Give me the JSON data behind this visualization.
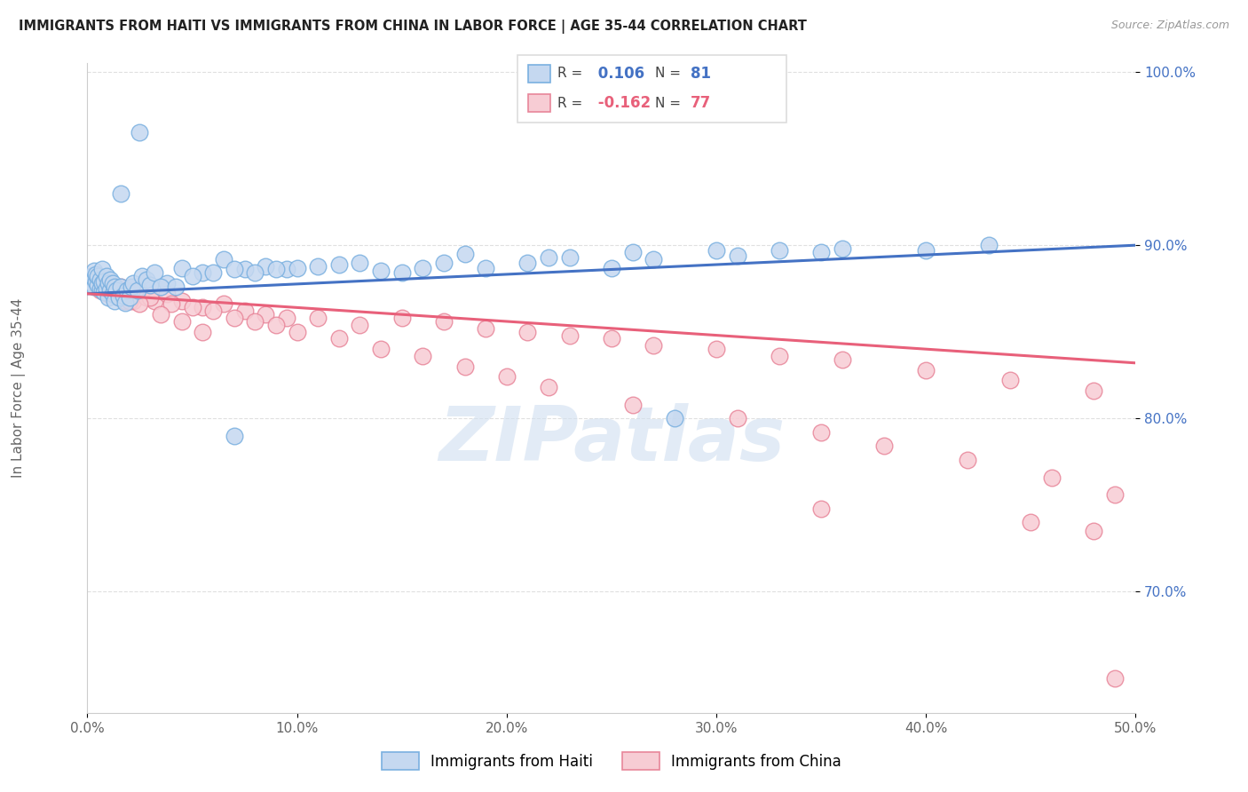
{
  "title": "IMMIGRANTS FROM HAITI VS IMMIGRANTS FROM CHINA IN LABOR FORCE | AGE 35-44 CORRELATION CHART",
  "source": "Source: ZipAtlas.com",
  "ylabel": "In Labor Force | Age 35-44",
  "xmin": 0.0,
  "xmax": 0.5,
  "ymin": 0.63,
  "ymax": 1.005,
  "xticks": [
    0.0,
    0.1,
    0.2,
    0.3,
    0.4,
    0.5
  ],
  "xticklabels": [
    "0.0%",
    "10.0%",
    "20.0%",
    "30.0%",
    "40.0%",
    "50.0%"
  ],
  "yticks": [
    0.7,
    0.8,
    0.9,
    1.0
  ],
  "yticklabels": [
    "70.0%",
    "80.0%",
    "90.0%",
    "100.0%"
  ],
  "haiti_color": "#c5d8f0",
  "haiti_edge_color": "#7ab0e0",
  "china_color": "#f7ccd4",
  "china_edge_color": "#e8869a",
  "haiti_line_color": "#4472c4",
  "china_line_color": "#e8607a",
  "haiti_R": 0.106,
  "haiti_N": 81,
  "china_R": -0.162,
  "china_N": 77,
  "legend_label_haiti": "Immigrants from Haiti",
  "legend_label_china": "Immigrants from China",
  "watermark": "ZIPatlas",
  "watermark_color": "#c8d8e8",
  "grid_color": "#e0e0e0",
  "background_color": "#ffffff",
  "haiti_line_y0": 0.872,
  "haiti_line_y1": 0.9,
  "china_line_y0": 0.872,
  "china_line_y1": 0.832,
  "haiti_x": [
    0.001,
    0.002,
    0.002,
    0.003,
    0.003,
    0.004,
    0.004,
    0.005,
    0.005,
    0.006,
    0.006,
    0.007,
    0.007,
    0.007,
    0.008,
    0.008,
    0.009,
    0.009,
    0.01,
    0.01,
    0.011,
    0.011,
    0.012,
    0.012,
    0.013,
    0.013,
    0.014,
    0.015,
    0.016,
    0.017,
    0.018,
    0.019,
    0.02,
    0.021,
    0.022,
    0.024,
    0.026,
    0.028,
    0.03,
    0.032,
    0.038,
    0.045,
    0.055,
    0.065,
    0.075,
    0.085,
    0.095,
    0.11,
    0.13,
    0.15,
    0.17,
    0.19,
    0.21,
    0.23,
    0.25,
    0.27,
    0.3,
    0.33,
    0.36,
    0.4,
    0.43,
    0.18,
    0.22,
    0.26,
    0.28,
    0.31,
    0.35,
    0.05,
    0.06,
    0.07,
    0.08,
    0.09,
    0.1,
    0.12,
    0.14,
    0.16,
    0.035,
    0.042,
    0.016,
    0.025,
    0.07
  ],
  "haiti_y": [
    0.88,
    0.878,
    0.882,
    0.876,
    0.885,
    0.879,
    0.883,
    0.877,
    0.882,
    0.875,
    0.88,
    0.874,
    0.878,
    0.886,
    0.873,
    0.879,
    0.875,
    0.882,
    0.87,
    0.878,
    0.874,
    0.88,
    0.872,
    0.878,
    0.868,
    0.876,
    0.874,
    0.87,
    0.876,
    0.871,
    0.867,
    0.874,
    0.87,
    0.876,
    0.878,
    0.874,
    0.882,
    0.88,
    0.877,
    0.884,
    0.878,
    0.887,
    0.884,
    0.892,
    0.886,
    0.888,
    0.886,
    0.888,
    0.89,
    0.884,
    0.89,
    0.887,
    0.89,
    0.893,
    0.887,
    0.892,
    0.897,
    0.897,
    0.898,
    0.897,
    0.9,
    0.895,
    0.893,
    0.896,
    0.8,
    0.894,
    0.896,
    0.882,
    0.884,
    0.886,
    0.884,
    0.886,
    0.887,
    0.889,
    0.885,
    0.887,
    0.876,
    0.876,
    0.93,
    0.965,
    0.79
  ],
  "china_x": [
    0.002,
    0.003,
    0.004,
    0.005,
    0.006,
    0.007,
    0.008,
    0.009,
    0.01,
    0.011,
    0.012,
    0.013,
    0.014,
    0.015,
    0.016,
    0.017,
    0.018,
    0.019,
    0.02,
    0.022,
    0.025,
    0.028,
    0.032,
    0.038,
    0.045,
    0.055,
    0.065,
    0.075,
    0.085,
    0.095,
    0.11,
    0.13,
    0.15,
    0.17,
    0.19,
    0.21,
    0.23,
    0.25,
    0.27,
    0.3,
    0.33,
    0.36,
    0.4,
    0.44,
    0.48,
    0.03,
    0.04,
    0.05,
    0.06,
    0.07,
    0.08,
    0.09,
    0.1,
    0.12,
    0.14,
    0.16,
    0.18,
    0.2,
    0.22,
    0.26,
    0.31,
    0.35,
    0.38,
    0.42,
    0.46,
    0.49,
    0.01,
    0.015,
    0.02,
    0.025,
    0.035,
    0.045,
    0.055,
    0.35,
    0.45,
    0.48,
    0.49
  ],
  "china_y": [
    0.882,
    0.878,
    0.88,
    0.876,
    0.874,
    0.88,
    0.876,
    0.874,
    0.872,
    0.878,
    0.874,
    0.872,
    0.876,
    0.87,
    0.876,
    0.872,
    0.868,
    0.874,
    0.87,
    0.868,
    0.874,
    0.87,
    0.868,
    0.872,
    0.868,
    0.864,
    0.866,
    0.862,
    0.86,
    0.858,
    0.858,
    0.854,
    0.858,
    0.856,
    0.852,
    0.85,
    0.848,
    0.846,
    0.842,
    0.84,
    0.836,
    0.834,
    0.828,
    0.822,
    0.816,
    0.87,
    0.866,
    0.864,
    0.862,
    0.858,
    0.856,
    0.854,
    0.85,
    0.846,
    0.84,
    0.836,
    0.83,
    0.824,
    0.818,
    0.808,
    0.8,
    0.792,
    0.784,
    0.776,
    0.766,
    0.756,
    0.874,
    0.872,
    0.868,
    0.866,
    0.86,
    0.856,
    0.85,
    0.748,
    0.74,
    0.735,
    0.65
  ]
}
